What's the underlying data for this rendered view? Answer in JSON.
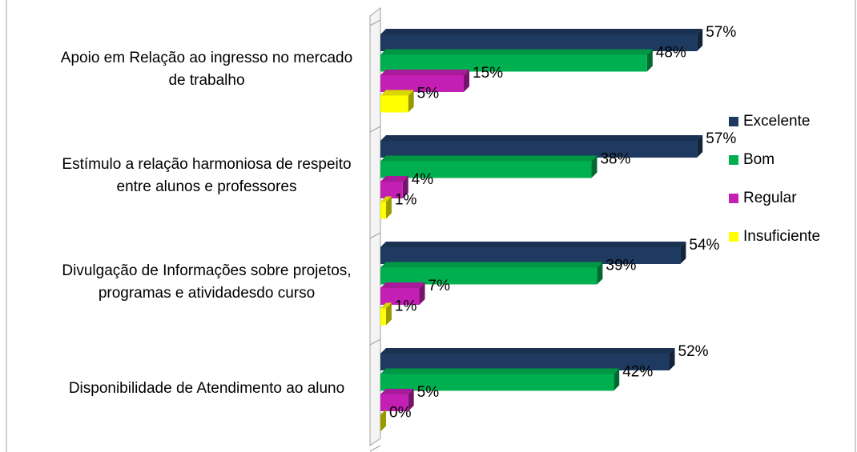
{
  "chart_data": {
    "type": "hbar",
    "categories": [
      "Apoio em Relação ao ingresso no mercado de trabalho",
      "Estímulo a relação harmoniosa de respeito entre alunos e professores",
      "Divulgação de Informações sobre projetos, programas e atividadesdo curso",
      "Disponibilidade de Atendimento ao aluno"
    ],
    "series": [
      {
        "name": "Excelente",
        "color": "#1f3a60",
        "values": [
          57,
          57,
          54,
          52
        ],
        "value_labels": [
          "57%",
          "57%",
          "54%",
          "52%"
        ]
      },
      {
        "name": "Bom",
        "color": "#00b050",
        "values": [
          48,
          38,
          39,
          42
        ],
        "value_labels": [
          "48%",
          "38%",
          "39%",
          "42%"
        ]
      },
      {
        "name": "Regular",
        "color": "#c41fb4",
        "values": [
          15,
          4,
          7,
          5
        ],
        "value_labels": [
          "15%",
          "4%",
          "7%",
          "5%"
        ]
      },
      {
        "name": "Insuficiente",
        "color": "#ffff00",
        "values": [
          5,
          1,
          1,
          0
        ],
        "value_labels": [
          "5%",
          "1%",
          "1%",
          "0%"
        ]
      }
    ],
    "xlim": [
      0,
      60
    ],
    "legend": "right"
  }
}
